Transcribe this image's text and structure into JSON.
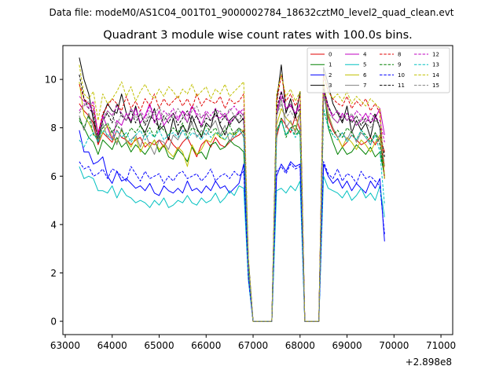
{
  "chart_data": {
    "type": "line",
    "suptitle": "Data file: modeM0/AS1C04_001T01_9000002784_18632cztM0_level2_quad_clean.evt",
    "title": "Quadrant 3 module wise count rates with 100.0s bins.",
    "xlabel": "",
    "ylabel": "",
    "x_offset_label": "+2.898e8",
    "xlim": [
      62950,
      71250
    ],
    "ylim": [
      -0.55,
      11.4
    ],
    "xticks": [
      63000,
      64000,
      65000,
      66000,
      67000,
      68000,
      69000,
      70000,
      71000
    ],
    "xtick_labels": [
      "63000",
      "64000",
      "65000",
      "66000",
      "67000",
      "68000",
      "69000",
      "70000",
      "71000"
    ],
    "yticks": [
      0,
      2,
      4,
      6,
      8,
      10
    ],
    "ytick_labels": [
      "0",
      "2",
      "4",
      "6",
      "8",
      "10"
    ],
    "x_start": 63300,
    "x_step": 100,
    "legend_position": "top-right",
    "series": [
      {
        "name": "0",
        "color": "#e00000",
        "style": "solid",
        "values": [
          9.0,
          8.7,
          8.5,
          8.2,
          7.3,
          7.8,
          7.6,
          7.4,
          7.9,
          7.6,
          7.5,
          7.3,
          7.5,
          7.6,
          7.2,
          7.4,
          7.3,
          7.5,
          7.2,
          7.6,
          7.3,
          7.1,
          7.4,
          7.6,
          7.2,
          6.8,
          7.3,
          7.5,
          7.2,
          7.6,
          7.3,
          7.2,
          7.4,
          7.6,
          7.7,
          7.9,
          2.0,
          0.0,
          0.0,
          0.0,
          0.0,
          0.0,
          7.6,
          8.4,
          8.1,
          7.8,
          8.5,
          7.9,
          0.0,
          0.0,
          0.0,
          0.0,
          9.6,
          8.4,
          7.9,
          7.6,
          7.2,
          7.4,
          7.7,
          7.5,
          7.3,
          7.4,
          7.6,
          7.3,
          7.6,
          7.0
        ]
      },
      {
        "name": "1",
        "color": "#008000",
        "style": "solid",
        "values": [
          8.3,
          8.0,
          7.6,
          7.4,
          6.9,
          7.5,
          7.3,
          7.1,
          7.6,
          7.2,
          7.4,
          7.0,
          7.3,
          7.1,
          6.9,
          7.2,
          7.5,
          7.0,
          7.3,
          6.8,
          6.7,
          7.1,
          6.9,
          6.6,
          7.2,
          6.9,
          7.0,
          6.7,
          7.3,
          7.4,
          7.1,
          7.2,
          7.5,
          7.3,
          7.2,
          7.0,
          2.2,
          0.0,
          0.0,
          0.0,
          0.0,
          0.0,
          7.9,
          8.3,
          7.7,
          8.0,
          8.1,
          7.7,
          0.0,
          0.0,
          0.0,
          0.0,
          9.8,
          8.0,
          7.4,
          6.9,
          7.2,
          6.9,
          7.0,
          7.3,
          7.1,
          6.9,
          7.2,
          6.8,
          7.0,
          6.0
        ]
      },
      {
        "name": "2",
        "color": "#0000ff",
        "style": "solid",
        "values": [
          7.9,
          7.0,
          7.0,
          6.5,
          6.6,
          6.8,
          6.0,
          5.7,
          6.2,
          5.8,
          5.9,
          5.7,
          5.5,
          5.6,
          5.4,
          5.7,
          5.3,
          5.2,
          5.6,
          5.4,
          5.3,
          5.5,
          5.3,
          5.8,
          5.4,
          5.5,
          5.3,
          5.6,
          5.4,
          5.8,
          5.5,
          5.6,
          5.3,
          5.5,
          5.7,
          6.5,
          1.8,
          0.0,
          0.0,
          0.0,
          0.0,
          0.0,
          6.0,
          6.5,
          6.2,
          6.6,
          6.4,
          6.5,
          0.0,
          0.0,
          0.0,
          0.0,
          6.5,
          6.0,
          5.7,
          5.9,
          5.5,
          5.8,
          5.4,
          5.7,
          5.5,
          5.3,
          5.8,
          5.5,
          5.9,
          3.3
        ]
      },
      {
        "name": "3",
        "color": "#000000",
        "style": "solid",
        "values": [
          10.9,
          10.0,
          9.4,
          8.3,
          7.6,
          8.5,
          9.0,
          8.7,
          8.6,
          9.4,
          8.6,
          8.2,
          8.9,
          8.1,
          7.8,
          8.3,
          8.8,
          7.9,
          8.1,
          7.5,
          8.4,
          7.7,
          8.1,
          7.8,
          8.5,
          8.0,
          7.6,
          8.2,
          8.0,
          8.8,
          8.1,
          7.7,
          8.3,
          8.5,
          8.2,
          8.4,
          2.6,
          0.0,
          0.0,
          0.0,
          0.0,
          0.0,
          9.1,
          10.6,
          8.6,
          9.2,
          8.4,
          9.5,
          0.0,
          0.0,
          0.0,
          0.0,
          10.5,
          9.8,
          9.0,
          8.6,
          8.2,
          8.9,
          7.8,
          8.3,
          7.9,
          8.2,
          7.6,
          8.5,
          8.0,
          5.9
        ]
      },
      {
        "name": "4",
        "color": "#c000c0",
        "style": "solid",
        "values": [
          9.3,
          9.1,
          9.0,
          8.6,
          7.8,
          8.5,
          8.0,
          7.5,
          8.3,
          8.1,
          8.6,
          8.3,
          8.8,
          8.2,
          8.5,
          9.0,
          8.2,
          8.7,
          8.1,
          8.4,
          8.6,
          8.3,
          8.7,
          8.2,
          8.9,
          8.5,
          8.1,
          8.6,
          8.3,
          8.5,
          8.4,
          8.6,
          8.2,
          8.4,
          8.7,
          8.5,
          2.3,
          0.0,
          0.0,
          0.0,
          0.0,
          0.0,
          8.5,
          9.5,
          8.8,
          8.9,
          8.6,
          9.0,
          0.0,
          0.0,
          0.0,
          0.0,
          9.7,
          8.9,
          8.4,
          8.2,
          8.6,
          8.3,
          8.5,
          8.1,
          8.3,
          8.6,
          8.2,
          8.4,
          8.8,
          7.7
        ]
      },
      {
        "name": "5",
        "color": "#00c0c0",
        "style": "solid",
        "values": [
          6.4,
          5.9,
          6.0,
          5.9,
          5.4,
          5.4,
          5.3,
          5.6,
          5.1,
          5.5,
          5.2,
          5.1,
          4.9,
          5.0,
          4.9,
          4.7,
          5.0,
          4.8,
          5.1,
          4.7,
          4.8,
          5.0,
          4.9,
          5.2,
          4.9,
          4.8,
          5.1,
          4.9,
          5.0,
          5.3,
          4.9,
          5.1,
          5.4,
          5.2,
          5.6,
          5.5,
          1.7,
          0.0,
          0.0,
          0.0,
          0.0,
          0.0,
          5.4,
          5.5,
          5.3,
          5.6,
          5.4,
          5.8,
          0.0,
          0.0,
          0.0,
          0.0,
          6.0,
          5.5,
          5.4,
          5.3,
          5.1,
          5.4,
          5.0,
          5.2,
          5.5,
          5.1,
          5.3,
          5.0,
          5.6,
          4.3
        ]
      },
      {
        "name": "6",
        "color": "#c0c000",
        "style": "solid",
        "values": [
          9.9,
          8.5,
          8.2,
          7.8,
          7.4,
          7.8,
          8.1,
          7.6,
          7.4,
          7.9,
          7.5,
          7.2,
          7.6,
          7.0,
          7.4,
          7.2,
          7.5,
          7.1,
          7.3,
          7.0,
          6.8,
          7.2,
          7.0,
          6.4,
          7.3,
          6.9,
          7.1,
          7.5,
          7.4,
          7.8,
          7.6,
          7.5,
          7.8,
          7.7,
          7.9,
          7.9,
          2.2,
          0.0,
          0.0,
          0.0,
          0.0,
          0.0,
          8.1,
          8.8,
          8.4,
          8.2,
          7.9,
          8.7,
          0.0,
          0.0,
          0.0,
          0.0,
          9.9,
          8.6,
          8.0,
          7.6,
          7.2,
          7.6,
          7.4,
          7.1,
          7.5,
          7.3,
          7.0,
          7.4,
          7.7,
          6.4
        ]
      },
      {
        "name": "7",
        "color": "#808080",
        "style": "solid",
        "values": [
          8.5,
          7.9,
          8.6,
          8.0,
          7.4,
          8.2,
          7.6,
          7.9,
          7.3,
          8.0,
          7.4,
          7.5,
          7.7,
          7.2,
          7.8,
          7.3,
          6.9,
          7.5,
          7.4,
          7.1,
          7.7,
          7.5,
          7.9,
          7.8,
          8.2,
          7.6,
          7.9,
          7.7,
          8.0,
          8.3,
          7.7,
          8.1,
          7.4,
          7.8,
          8.0,
          7.6,
          2.4,
          0.0,
          0.0,
          0.0,
          0.0,
          0.0,
          8.5,
          9.2,
          8.0,
          8.3,
          7.8,
          8.6,
          0.0,
          0.0,
          0.0,
          0.0,
          9.4,
          8.5,
          8.0,
          7.6,
          7.8,
          7.5,
          7.9,
          7.4,
          7.8,
          7.6,
          7.3,
          7.8,
          7.5,
          5.9
        ]
      },
      {
        "name": "8",
        "color": "#e00000",
        "style": "dashed",
        "values": [
          9.8,
          9.2,
          9.0,
          8.9,
          7.7,
          8.6,
          8.9,
          9.2,
          9.0,
          8.7,
          9.3,
          8.8,
          9.1,
          8.7,
          9.2,
          8.9,
          9.4,
          8.8,
          9.2,
          8.9,
          9.1,
          9.3,
          8.9,
          9.2,
          8.8,
          9.4,
          8.9,
          9.2,
          9.1,
          9.0,
          9.3,
          8.8,
          9.2,
          9.0,
          9.1,
          9.4,
          2.5,
          0.0,
          0.0,
          0.0,
          0.0,
          0.0,
          9.0,
          10.2,
          9.1,
          9.4,
          8.9,
          9.3,
          0.0,
          0.0,
          0.0,
          0.0,
          10.2,
          9.5,
          9.2,
          9.0,
          8.9,
          9.3,
          8.8,
          9.1,
          8.9,
          9.2,
          8.7,
          9.0,
          8.6,
          5.9
        ]
      },
      {
        "name": "9",
        "color": "#008000",
        "style": "dashed",
        "values": [
          8.4,
          8.0,
          8.5,
          7.7,
          7.6,
          8.0,
          8.2,
          7.8,
          8.1,
          7.9,
          7.6,
          8.0,
          7.8,
          8.1,
          7.7,
          8.0,
          7.6,
          8.1,
          7.9,
          7.7,
          8.0,
          7.8,
          8.2,
          7.6,
          8.0,
          7.9,
          7.7,
          8.1,
          7.8,
          8.0,
          7.6,
          7.9,
          8.1,
          7.7,
          8.0,
          7.8,
          2.3,
          0.0,
          0.0,
          0.0,
          0.0,
          0.0,
          7.8,
          8.4,
          7.6,
          8.0,
          7.7,
          7.9,
          0.0,
          0.0,
          0.0,
          0.0,
          8.7,
          8.1,
          7.7,
          7.9,
          7.6,
          8.0,
          7.8,
          7.5,
          7.9,
          7.7,
          7.4,
          7.8,
          7.3,
          6.0
        ]
      },
      {
        "name": "10",
        "color": "#0000ff",
        "style": "dashed",
        "values": [
          6.6,
          6.3,
          6.4,
          6.0,
          6.1,
          6.3,
          5.9,
          6.3,
          6.2,
          6.0,
          5.8,
          6.4,
          6.1,
          5.8,
          6.2,
          5.9,
          6.0,
          6.1,
          5.7,
          6.0,
          5.8,
          6.1,
          6.2,
          5.9,
          6.0,
          6.1,
          5.8,
          6.0,
          6.3,
          5.8,
          6.0,
          6.1,
          5.9,
          6.2,
          6.0,
          6.2,
          1.8,
          0.0,
          0.0,
          0.0,
          0.0,
          0.0,
          6.2,
          6.4,
          6.1,
          6.5,
          6.3,
          6.4,
          0.0,
          0.0,
          0.0,
          0.0,
          6.6,
          6.1,
          5.9,
          6.3,
          5.8,
          6.1,
          6.0,
          5.7,
          6.2,
          5.9,
          6.0,
          5.8,
          5.6,
          3.6
        ]
      },
      {
        "name": "11",
        "color": "#000000",
        "style": "dashed",
        "values": [
          10.2,
          9.2,
          8.8,
          8.6,
          7.4,
          8.3,
          8.6,
          8.2,
          9.0,
          8.5,
          8.3,
          8.7,
          8.2,
          8.6,
          8.1,
          8.5,
          8.3,
          8.0,
          8.5,
          8.2,
          8.6,
          8.1,
          8.4,
          8.7,
          8.2,
          8.5,
          8.0,
          8.4,
          8.3,
          8.6,
          8.2,
          8.5,
          8.1,
          8.4,
          8.6,
          8.3,
          2.4,
          0.0,
          0.0,
          0.0,
          0.0,
          0.0,
          8.8,
          9.5,
          8.7,
          9.0,
          8.5,
          8.8,
          0.0,
          0.0,
          0.0,
          0.0,
          9.6,
          8.9,
          8.5,
          8.7,
          8.3,
          8.6,
          8.2,
          8.5,
          8.1,
          8.4,
          8.2,
          8.6,
          8.0,
          6.8
        ]
      },
      {
        "name": "12",
        "color": "#c000c0",
        "style": "dashed",
        "values": [
          8.7,
          9.0,
          8.8,
          9.1,
          7.7,
          8.4,
          8.7,
          8.5,
          8.9,
          8.6,
          8.3,
          8.8,
          8.5,
          8.7,
          8.4,
          8.9,
          8.6,
          8.3,
          8.7,
          8.5,
          8.8,
          8.4,
          8.7,
          8.5,
          8.9,
          8.6,
          8.4,
          8.7,
          8.5,
          8.8,
          8.6,
          8.4,
          8.7,
          8.9,
          8.6,
          8.8,
          2.4,
          0.0,
          0.0,
          0.0,
          0.0,
          0.0,
          8.7,
          9.3,
          8.8,
          9.0,
          8.6,
          8.9,
          0.0,
          0.0,
          0.0,
          0.0,
          9.5,
          8.8,
          8.5,
          8.7,
          8.4,
          8.6,
          8.3,
          8.7,
          8.5,
          8.2,
          8.6,
          8.4,
          8.3,
          7.4
        ]
      },
      {
        "name": "13",
        "color": "#00c0c0",
        "style": "dashed",
        "values": [
          7.5,
          7.2,
          7.6,
          7.8,
          7.4,
          7.9,
          7.7,
          7.5,
          7.9,
          7.6,
          7.8,
          7.4,
          7.7,
          7.9,
          7.5,
          7.8,
          7.6,
          7.9,
          7.5,
          7.7,
          7.8,
          7.6,
          7.9,
          7.5,
          7.8,
          7.7,
          7.5,
          7.9,
          7.6,
          7.8,
          7.7,
          7.5,
          7.8,
          7.6,
          7.9,
          7.7,
          2.3,
          0.0,
          0.0,
          0.0,
          0.0,
          0.0,
          7.8,
          8.3,
          7.7,
          8.0,
          7.6,
          7.9,
          0.0,
          0.0,
          0.0,
          0.0,
          8.8,
          8.0,
          7.7,
          7.5,
          7.8,
          7.4,
          7.7,
          7.5,
          7.9,
          7.6,
          7.3,
          7.7,
          7.0,
          4.8
        ]
      },
      {
        "name": "14",
        "color": "#c0c000",
        "style": "dashed",
        "values": [
          10.6,
          9.4,
          9.2,
          9.5,
          8.3,
          9.4,
          9.0,
          9.2,
          9.5,
          9.9,
          9.3,
          9.7,
          9.1,
          9.5,
          9.8,
          9.4,
          9.2,
          9.6,
          9.3,
          9.7,
          9.5,
          9.2,
          9.6,
          9.4,
          9.8,
          9.3,
          9.5,
          9.7,
          9.2,
          9.6,
          9.4,
          9.8,
          9.3,
          9.5,
          9.7,
          9.9,
          2.6,
          0.0,
          0.0,
          0.0,
          0.0,
          0.0,
          9.4,
          10.2,
          9.3,
          9.6,
          9.1,
          9.5,
          0.0,
          0.0,
          0.0,
          0.0,
          10.3,
          9.5,
          9.2,
          9.4,
          9.1,
          9.5,
          9.0,
          9.3,
          9.1,
          8.9,
          9.2,
          9.0,
          8.8,
          5.9
        ]
      },
      {
        "name": "15",
        "color": "#808080",
        "style": "dashed",
        "values": [
          8.6,
          8.9,
          9.1,
          8.7,
          7.5,
          8.3,
          8.7,
          8.5,
          8.1,
          8.6,
          8.3,
          8.8,
          8.4,
          8.6,
          8.2,
          8.7,
          8.5,
          8.9,
          8.3,
          8.6,
          8.4,
          8.8,
          8.5,
          8.2,
          8.7,
          8.9,
          8.4,
          8.6,
          8.3,
          8.5,
          8.7,
          8.4,
          8.8,
          8.5,
          8.3,
          8.6,
          2.4,
          0.0,
          0.0,
          0.0,
          0.0,
          0.0,
          8.5,
          9.0,
          8.4,
          8.7,
          8.3,
          8.6,
          0.0,
          0.0,
          0.0,
          0.0,
          9.2,
          8.6,
          8.4,
          8.2,
          8.5,
          8.3,
          8.6,
          8.1,
          8.4,
          8.2,
          8.0,
          8.3,
          8.1,
          6.4
        ]
      }
    ]
  }
}
